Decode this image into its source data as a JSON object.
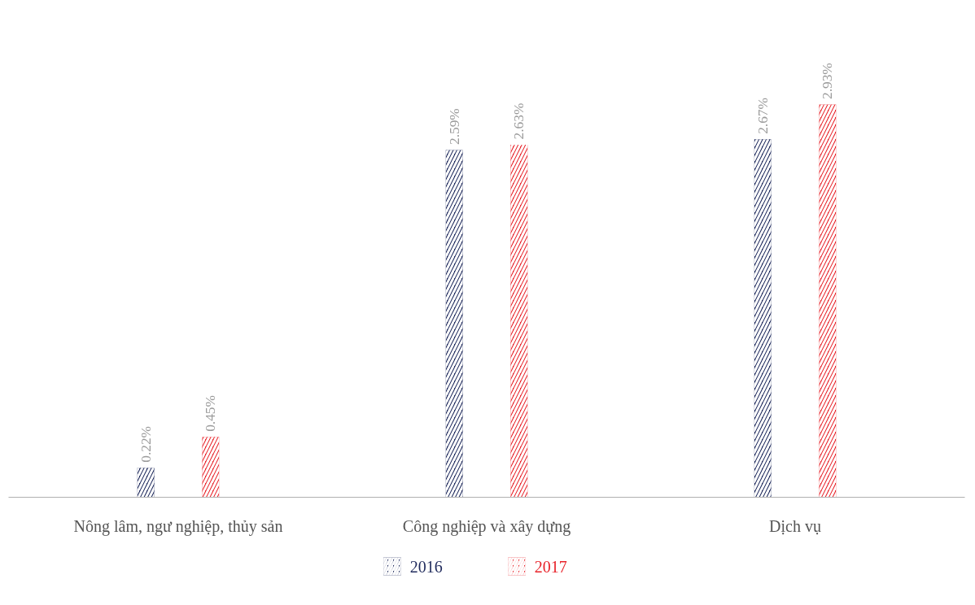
{
  "chart_data": {
    "type": "bar",
    "categories": [
      "Nông lâm, ngư nghiệp, thủy sản",
      "Công nghiệp và xây dựng",
      "Dịch vụ"
    ],
    "series": [
      {
        "name": "2016",
        "color": "#1f2a5c",
        "values": [
          0.22,
          2.59,
          2.67
        ],
        "value_labels": [
          "0.22%",
          "2.59%",
          "2.67%"
        ]
      },
      {
        "name": "2017",
        "color": "#e8232a",
        "values": [
          0.45,
          2.63,
          2.93
        ],
        "value_labels": [
          "0.45%",
          "2.63%",
          "2.93%"
        ]
      }
    ],
    "legend": "bottom",
    "grid": false
  }
}
